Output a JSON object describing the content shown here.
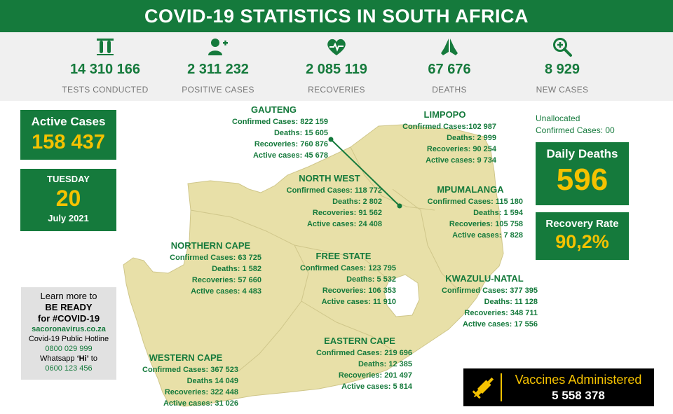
{
  "header": {
    "title": "COVID-19 STATISTICS IN SOUTH AFRICA"
  },
  "stats": [
    {
      "icon": "test-tubes-icon",
      "value": "14 310 166",
      "label": "TESTS CONDUCTED"
    },
    {
      "icon": "add-user-icon",
      "value": "2 311 232",
      "label": "POSITIVE CASES"
    },
    {
      "icon": "heartbeat-icon",
      "value": "2 085 119",
      "label": "RECOVERIES"
    },
    {
      "icon": "praying-hands-icon",
      "value": "67 676",
      "label": "DEATHS"
    },
    {
      "icon": "zoom-plus-icon",
      "value": "8 929",
      "label": "NEW CASES"
    }
  ],
  "active": {
    "label": "Active Cases",
    "value": "158 437"
  },
  "date": {
    "weekday": "TUESDAY",
    "day": "20",
    "month_year": "July 2021"
  },
  "unallocated": {
    "line1": "Unallocated",
    "line2": "Confirmed Cases: 00"
  },
  "daily_deaths": {
    "label": "Daily Deaths",
    "value": "596"
  },
  "recovery_rate": {
    "label": "Recovery Rate",
    "value": "90,2%"
  },
  "regions": {
    "gauteng": {
      "name": "GAUTENG",
      "l1": "Confirmed Cases: 822 159",
      "l2": "Deaths: 15 605",
      "l3": "Recoveries: 760 876",
      "l4": "Active cases: 45 678"
    },
    "limpopo": {
      "name": "LIMPOPO",
      "l1": "Confirmed Cases:102 987",
      "l2": "Deaths: 2 999",
      "l3": "Recoveries: 90 254",
      "l4": "Active cases: 9 734"
    },
    "north_west": {
      "name": "NORTH WEST",
      "l1": "Confirmed Cases: 118 772",
      "l2": "Deaths: 2 802",
      "l3": "Recoveries: 91 562",
      "l4": "Active cases: 24 408"
    },
    "mpumalanga": {
      "name": "MPUMALANGA",
      "l1": "Confirmed Cases: 115 180",
      "l2": "Deaths:  1 594",
      "l3": "Recoveries: 105 758",
      "l4": "Active cases: 7 828"
    },
    "northern_cape": {
      "name": "NORTHERN CAPE",
      "l1": "Confirmed Cases: 63 725",
      "l2": "Deaths: 1 582",
      "l3": "Recoveries: 57 660",
      "l4": "Active cases: 4 483"
    },
    "free_state": {
      "name": "FREE STATE",
      "l1": "Confirmed Cases: 123 795",
      "l2": "Deaths: 5 532",
      "l3": "Recoveries:  106 353",
      "l4": "Active cases: 11 910"
    },
    "kwazulu_natal": {
      "name": "KWAZULU-NATAL",
      "l1": "Confirmed Cases: 377 395",
      "l2": "Deaths: 11 128",
      "l3": "Recoveries: 348 711",
      "l4": "Active cases: 17 556"
    },
    "eastern_cape": {
      "name": "EASTERN CAPE",
      "l1": "Confirmed Cases: 219 696",
      "l2": "Deaths: 12 385",
      "l3": "Recoveries: 201 497",
      "l4": "Active cases: 5 814"
    },
    "western_cape": {
      "name": "WESTERN CAPE",
      "l1": "Confirmed Cases: 367 523",
      "l2": "Deaths 14 049",
      "l3": "Recoveries: 322 448",
      "l4": "Active cases: 31 026"
    }
  },
  "learn_more": {
    "line1": "Learn more to",
    "line2": "BE READY",
    "line3": "for #COVID-19",
    "site": "sacoronavirus.co.za",
    "hotline_label": "Covid-19 Public Hotline",
    "hotline": "0800 029 999",
    "whatsapp_pre": "Whatsapp ",
    "whatsapp_hi": "‘Hi’",
    "whatsapp_post": " to",
    "whatsapp_number": "0600 123 456"
  },
  "vaccines": {
    "label": "Vaccines Administered",
    "value": "5 558 378",
    "icon": "syringe-icon"
  },
  "colors": {
    "green": "#157a3c",
    "map": "#e8e0a8",
    "gold": "#f5c200",
    "grey": "#f0f0f0"
  }
}
